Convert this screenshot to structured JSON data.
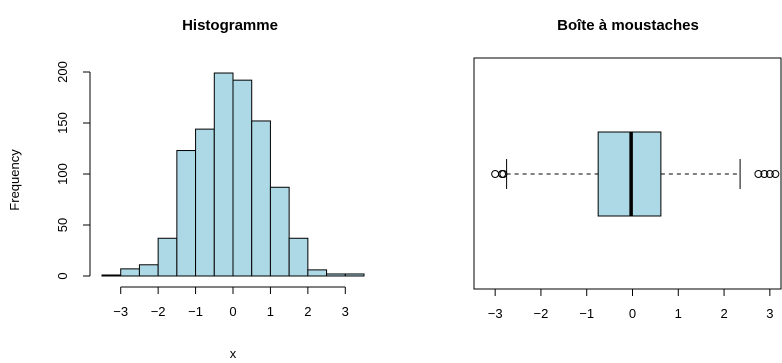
{
  "chart_data": [
    {
      "type": "histogram",
      "title": "Histogramme",
      "xlabel": "x",
      "ylabel": "Frequency",
      "bins": [
        {
          "x0": -3.5,
          "x1": -3.0,
          "count": 1
        },
        {
          "x0": -3.0,
          "x1": -2.5,
          "count": 7
        },
        {
          "x0": -2.5,
          "x1": -2.0,
          "count": 11
        },
        {
          "x0": -2.0,
          "x1": -1.5,
          "count": 37
        },
        {
          "x0": -1.5,
          "x1": -1.0,
          "count": 123
        },
        {
          "x0": -1.0,
          "x1": -0.5,
          "count": 144
        },
        {
          "x0": -0.5,
          "x1": 0.0,
          "count": 199
        },
        {
          "x0": 0.0,
          "x1": 0.5,
          "count": 192
        },
        {
          "x0": 0.5,
          "x1": 1.0,
          "count": 152
        },
        {
          "x0": 1.0,
          "x1": 1.5,
          "count": 87
        },
        {
          "x0": 1.5,
          "x1": 2.0,
          "count": 37
        },
        {
          "x0": 2.0,
          "x1": 2.5,
          "count": 6
        },
        {
          "x0": 2.5,
          "x1": 3.0,
          "count": 2
        },
        {
          "x0": 3.0,
          "x1": 3.5,
          "count": 2
        }
      ],
      "xticks": [
        -3,
        -2,
        -1,
        0,
        1,
        2,
        3
      ],
      "yticks": [
        0,
        50,
        100,
        150,
        200
      ],
      "xlim": [
        -3.5,
        3.5
      ],
      "ylim": [
        0,
        200
      ],
      "bar_color": "#add8e6"
    },
    {
      "type": "boxplot",
      "title": "Boîte à moustaches",
      "orientation": "horizontal",
      "q1": -0.75,
      "median": -0.03,
      "q3": 0.62,
      "whisker_low": -2.75,
      "whisker_high": 2.35,
      "outliers": [
        -3.0,
        -2.85,
        -2.82,
        2.75,
        2.88,
        3.0,
        3.12
      ],
      "xticks": [
        -3,
        -2,
        -1,
        0,
        1,
        2,
        3
      ],
      "xlim": [
        -3.2,
        3.2
      ],
      "box_color": "#add8e6"
    }
  ]
}
